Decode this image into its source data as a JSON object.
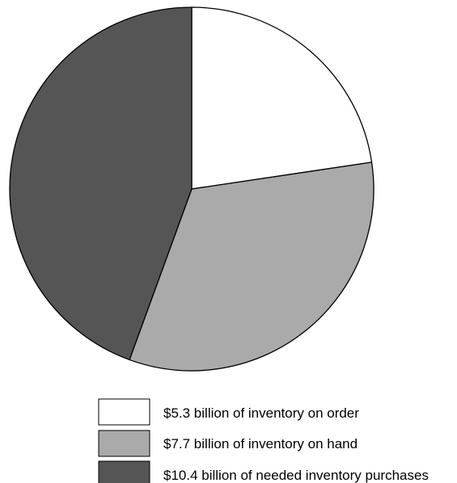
{
  "chart_data": {
    "type": "pie",
    "categories": [
      "$5.3 billion of inventory on order",
      "$7.7 billion of inventory on hand",
      "$10.4 billion of needed inventory purchases"
    ],
    "values": [
      5.3,
      7.7,
      10.4
    ],
    "colors": [
      "#ffffff",
      "#aaaaaa",
      "#555555"
    ],
    "title": "",
    "legend": {
      "position": "bottom",
      "items": [
        {
          "label": "$5.3 billion of inventory on order",
          "color": "#ffffff"
        },
        {
          "label": "$7.7 billion of inventory on hand",
          "color": "#aaaaaa"
        },
        {
          "label": "$10.4 billion of needed inventory purchases",
          "color": "#555555"
        }
      ]
    }
  }
}
